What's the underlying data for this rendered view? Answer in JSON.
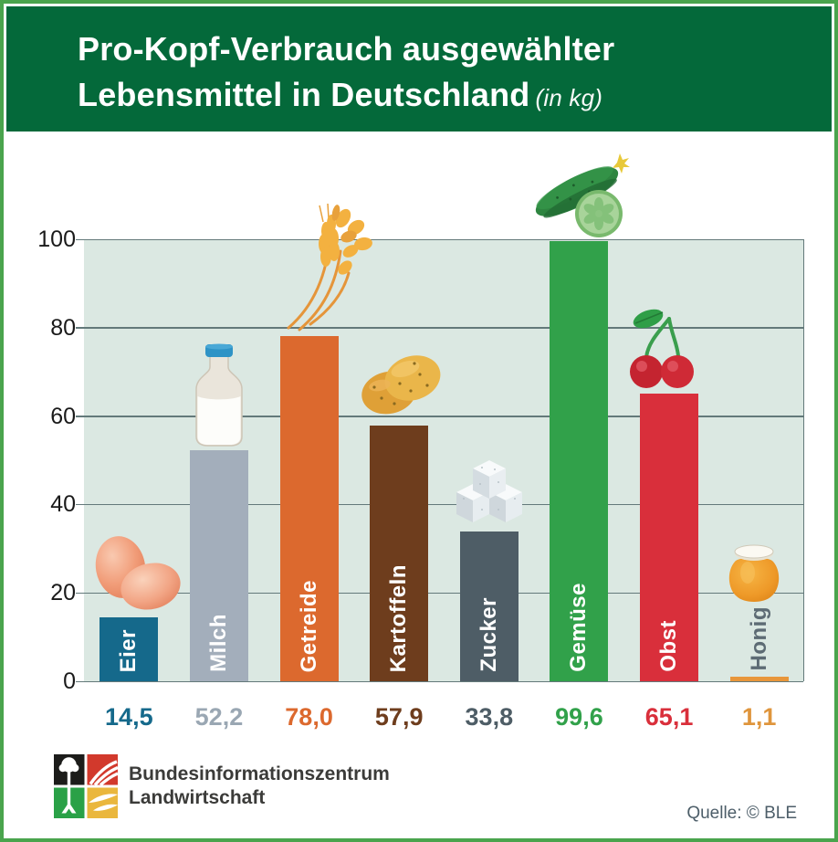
{
  "header": {
    "title_line1": "Pro-Kopf-Verbrauch ausgewählter",
    "title_line2": "Lebensmittel in Deutschland",
    "unit_note": "(in kg)"
  },
  "chart_data": {
    "type": "bar",
    "title": "Pro-Kopf-Verbrauch ausgewählter Lebensmittel in Deutschland",
    "unit": "kg",
    "ylim": [
      0,
      100
    ],
    "yticks": [
      0,
      20,
      40,
      60,
      80,
      100
    ],
    "grid": true,
    "legend": "none",
    "categories": [
      "Eier",
      "Milch",
      "Getreide",
      "Kartoffeln",
      "Zucker",
      "Gemüse",
      "Obst",
      "Honig"
    ],
    "values": [
      14.5,
      52.2,
      78.0,
      57.9,
      33.8,
      99.6,
      65.1,
      1.1
    ],
    "value_labels": [
      "14,5",
      "52,2",
      "78,0",
      "57,9",
      "33,8",
      "99,6",
      "65,1",
      "1,1"
    ],
    "bar_colors": [
      "#15698b",
      "#a3aebb",
      "#dc692e",
      "#6e3d1d",
      "#4e5d66",
      "#31a14a",
      "#d92f3b",
      "#e8963b"
    ],
    "value_colors": [
      "#15698b",
      "#9aa7b3",
      "#dc692e",
      "#6e3d1d",
      "#4e5d66",
      "#31a14a",
      "#d92f3b",
      "#df953c"
    ],
    "outside_label_color": "#5d6b74",
    "icons": [
      "eggs-icon",
      "milk-bottle-icon",
      "wheat-icon",
      "potatoes-icon",
      "sugar-cubes-icon",
      "cucumber-icon",
      "cherries-icon",
      "honey-jar-icon"
    ]
  },
  "colors": {
    "frame_border": "#4aa44d",
    "header_bg": "#04693a",
    "plot_bg": "#dbe8e2",
    "gridline": "#63797a",
    "axis_text": "#1a1a1a"
  },
  "footer": {
    "logo_name": "bzl-logo",
    "logo_line1": "Bundesinformationszentrum",
    "logo_line2": "Landwirtschaft",
    "source": "Quelle: © BLE"
  }
}
